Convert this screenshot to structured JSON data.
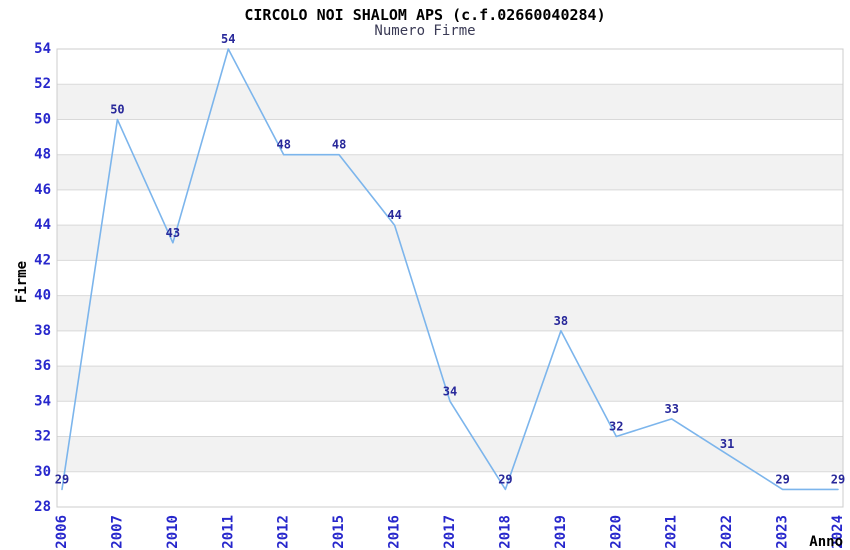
{
  "chart_data": {
    "type": "line",
    "title": "CIRCOLO NOI SHALOM APS (c.f.02660040284)",
    "subtitle": "Numero Firme",
    "xlabel": "Anno",
    "ylabel": "Firme",
    "categories": [
      "2006",
      "2007",
      "2010",
      "2011",
      "2012",
      "2015",
      "2016",
      "2017",
      "2018",
      "2019",
      "2020",
      "2021",
      "2022",
      "2023",
      "2024"
    ],
    "values": [
      29,
      50,
      43,
      54,
      48,
      48,
      44,
      34,
      29,
      38,
      32,
      33,
      31,
      29,
      29
    ],
    "series_name": "Numero Firme",
    "ylim": [
      28,
      54
    ],
    "ytick_step": 2,
    "yticks": [
      28,
      30,
      32,
      34,
      36,
      38,
      40,
      42,
      44,
      46,
      48,
      50,
      52,
      54
    ],
    "grid": true,
    "alternating_bands": true,
    "legend": "none",
    "data_labels_visible": true,
    "colors": {
      "line": "#7cb5ec",
      "tick_label": "#2727cc",
      "data_label": "#28289a",
      "title": "#000000",
      "subtitle": "#3a3a55",
      "axis_title": "#000000",
      "band": "#f2f2f2",
      "gridline": "#d9d9d9",
      "plot_border": "#cccccc",
      "background": "#ffffff"
    }
  }
}
